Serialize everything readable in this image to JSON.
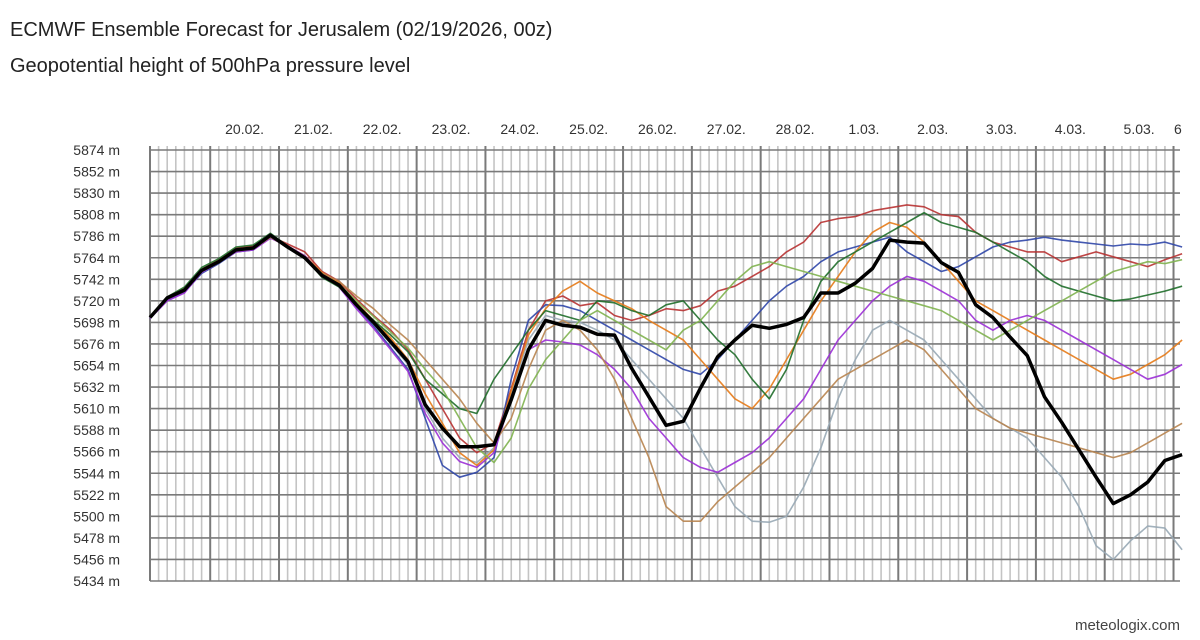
{
  "chart_data": {
    "type": "line",
    "title": "ECMWF Ensemble Forecast for Jerusalem (02/19/2026, 00z)",
    "subtitle": "Geopotential height of 500hPa pressure level",
    "credit": "meteologix.com",
    "y_unit": "m",
    "ylim": [
      5434,
      5874
    ],
    "y_ticks": [
      "5874 m",
      "5852 m",
      "5830 m",
      "5808 m",
      "5786 m",
      "5764 m",
      "5742 m",
      "5720 m",
      "5698 m",
      "5676 m",
      "5654 m",
      "5632 m",
      "5610 m",
      "5588 m",
      "5566 m",
      "5544 m",
      "5522 m",
      "5500 m",
      "5478 m",
      "5456 m",
      "5434 m"
    ],
    "x_tick_labels": [
      "20.02.",
      "21.02.",
      "22.02.",
      "23.02.",
      "24.02.",
      "25.02.",
      "26.02.",
      "27.02.",
      "28.02.",
      "1.03.",
      "2.03.",
      "3.03.",
      "4.03.",
      "5.03.",
      "6"
    ],
    "x_start": "2026-02-19T03:00Z",
    "x_step_hours": 6,
    "grid": true,
    "control": {
      "color": "#000000",
      "values": [
        5703,
        5723,
        5731,
        5751,
        5760,
        5772,
        5774,
        5787,
        5775,
        5764,
        5746,
        5736,
        5716,
        5698,
        5678,
        5658,
        5614,
        5590,
        5571,
        5571,
        5573,
        5619,
        5670,
        5700,
        5695,
        5693,
        5686,
        5685,
        5651,
        5622,
        5593,
        5597,
        5631,
        5663,
        5680,
        5695,
        5692,
        5696,
        5703,
        5728,
        5728,
        5738,
        5753,
        5782,
        5780,
        5779,
        5759,
        5749,
        5716,
        5703,
        5683,
        5664,
        5622,
        5596,
        5568,
        5540,
        5513,
        5522,
        5535,
        5557,
        5563
      ]
    },
    "members": [
      {
        "color": "#b83232",
        "values": [
          5703,
          5723,
          5732,
          5752,
          5762,
          5774,
          5776,
          5786,
          5778,
          5770,
          5750,
          5740,
          5722,
          5705,
          5690,
          5670,
          5640,
          5610,
          5580,
          5565,
          5575,
          5630,
          5690,
          5720,
          5725,
          5715,
          5718,
          5705,
          5700,
          5705,
          5712,
          5710,
          5715,
          5730,
          5735,
          5745,
          5755,
          5770,
          5780,
          5800,
          5804,
          5806,
          5812,
          5815,
          5818,
          5816,
          5808,
          5806,
          5790,
          5780,
          5775,
          5770,
          5770,
          5760,
          5765,
          5770,
          5765,
          5760,
          5755,
          5762,
          5768
        ]
      },
      {
        "color": "#2f46a8",
        "values": [
          5702,
          5721,
          5729,
          5748,
          5758,
          5770,
          5772,
          5785,
          5776,
          5765,
          5748,
          5736,
          5714,
          5694,
          5672,
          5650,
          5600,
          5552,
          5540,
          5545,
          5560,
          5640,
          5700,
          5716,
          5715,
          5710,
          5700,
          5690,
          5680,
          5670,
          5660,
          5650,
          5645,
          5660,
          5680,
          5700,
          5720,
          5735,
          5745,
          5760,
          5770,
          5775,
          5780,
          5785,
          5770,
          5760,
          5750,
          5755,
          5765,
          5775,
          5780,
          5782,
          5785,
          5782,
          5780,
          5778,
          5776,
          5778,
          5777,
          5780,
          5775
        ]
      },
      {
        "color": "#98a9b5",
        "values": [
          5703,
          5722,
          5730,
          5750,
          5760,
          5771,
          5773,
          5786,
          5774,
          5763,
          5745,
          5735,
          5715,
          5697,
          5676,
          5655,
          5610,
          5580,
          5560,
          5555,
          5570,
          5625,
          5680,
          5705,
          5700,
          5698,
          5690,
          5680,
          5660,
          5640,
          5620,
          5600,
          5570,
          5540,
          5510,
          5495,
          5494,
          5500,
          5530,
          5570,
          5620,
          5660,
          5690,
          5700,
          5690,
          5680,
          5660,
          5640,
          5620,
          5600,
          5590,
          5580,
          5560,
          5540,
          5510,
          5470,
          5456,
          5475,
          5490,
          5488,
          5466
        ]
      },
      {
        "color": "#e57a17",
        "values": [
          5704,
          5724,
          5733,
          5752,
          5761,
          5773,
          5775,
          5787,
          5776,
          5766,
          5749,
          5738,
          5718,
          5700,
          5682,
          5660,
          5625,
          5595,
          5565,
          5552,
          5568,
          5628,
          5685,
          5712,
          5730,
          5740,
          5728,
          5720,
          5712,
          5700,
          5690,
          5680,
          5660,
          5640,
          5620,
          5610,
          5630,
          5660,
          5690,
          5720,
          5745,
          5770,
          5790,
          5800,
          5795,
          5780,
          5760,
          5740,
          5720,
          5710,
          5700,
          5690,
          5680,
          5670,
          5660,
          5650,
          5640,
          5645,
          5655,
          5665,
          5680
        ]
      },
      {
        "color": "#9b2fd6",
        "values": [
          5702,
          5720,
          5728,
          5749,
          5759,
          5770,
          5772,
          5784,
          5776,
          5766,
          5747,
          5734,
          5712,
          5692,
          5670,
          5648,
          5605,
          5575,
          5556,
          5550,
          5565,
          5620,
          5670,
          5680,
          5678,
          5675,
          5665,
          5650,
          5630,
          5600,
          5580,
          5560,
          5550,
          5545,
          5555,
          5565,
          5580,
          5600,
          5620,
          5650,
          5680,
          5700,
          5720,
          5735,
          5745,
          5740,
          5730,
          5720,
          5700,
          5690,
          5700,
          5705,
          5700,
          5690,
          5680,
          5670,
          5660,
          5650,
          5640,
          5645,
          5655
        ]
      },
      {
        "color": "#1f6e2a",
        "values": [
          5703,
          5724,
          5734,
          5754,
          5763,
          5775,
          5777,
          5789,
          5776,
          5764,
          5744,
          5734,
          5716,
          5700,
          5685,
          5668,
          5640,
          5625,
          5610,
          5605,
          5640,
          5665,
          5690,
          5710,
          5705,
          5700,
          5720,
          5718,
          5710,
          5705,
          5716,
          5720,
          5700,
          5680,
          5665,
          5640,
          5620,
          5650,
          5700,
          5740,
          5760,
          5770,
          5780,
          5790,
          5800,
          5810,
          5800,
          5795,
          5790,
          5780,
          5770,
          5760,
          5745,
          5735,
          5730,
          5725,
          5720,
          5722,
          5726,
          5730,
          5735
        ]
      },
      {
        "color": "#b8844f",
        "values": [
          5703,
          5722,
          5730,
          5750,
          5759,
          5771,
          5773,
          5785,
          5775,
          5765,
          5748,
          5740,
          5725,
          5712,
          5695,
          5680,
          5660,
          5640,
          5620,
          5595,
          5575,
          5600,
          5650,
          5690,
          5700,
          5690,
          5670,
          5640,
          5600,
          5560,
          5510,
          5495,
          5495,
          5515,
          5530,
          5545,
          5560,
          5580,
          5600,
          5620,
          5640,
          5650,
          5660,
          5670,
          5680,
          5670,
          5650,
          5630,
          5610,
          5600,
          5590,
          5585,
          5580,
          5575,
          5570,
          5565,
          5560,
          5565,
          5575,
          5585,
          5595
        ]
      },
      {
        "color": "#7fb34f",
        "values": [
          5703,
          5723,
          5731,
          5751,
          5760,
          5772,
          5774,
          5786,
          5775,
          5764,
          5746,
          5737,
          5720,
          5704,
          5688,
          5672,
          5650,
          5630,
          5600,
          5570,
          5555,
          5580,
          5630,
          5660,
          5680,
          5700,
          5710,
          5700,
          5690,
          5680,
          5670,
          5690,
          5700,
          5720,
          5740,
          5755,
          5760,
          5755,
          5750,
          5745,
          5740,
          5735,
          5730,
          5725,
          5720,
          5715,
          5710,
          5700,
          5690,
          5680,
          5690,
          5700,
          5710,
          5720,
          5730,
          5740,
          5750,
          5755,
          5760,
          5758,
          5762
        ]
      }
    ]
  }
}
